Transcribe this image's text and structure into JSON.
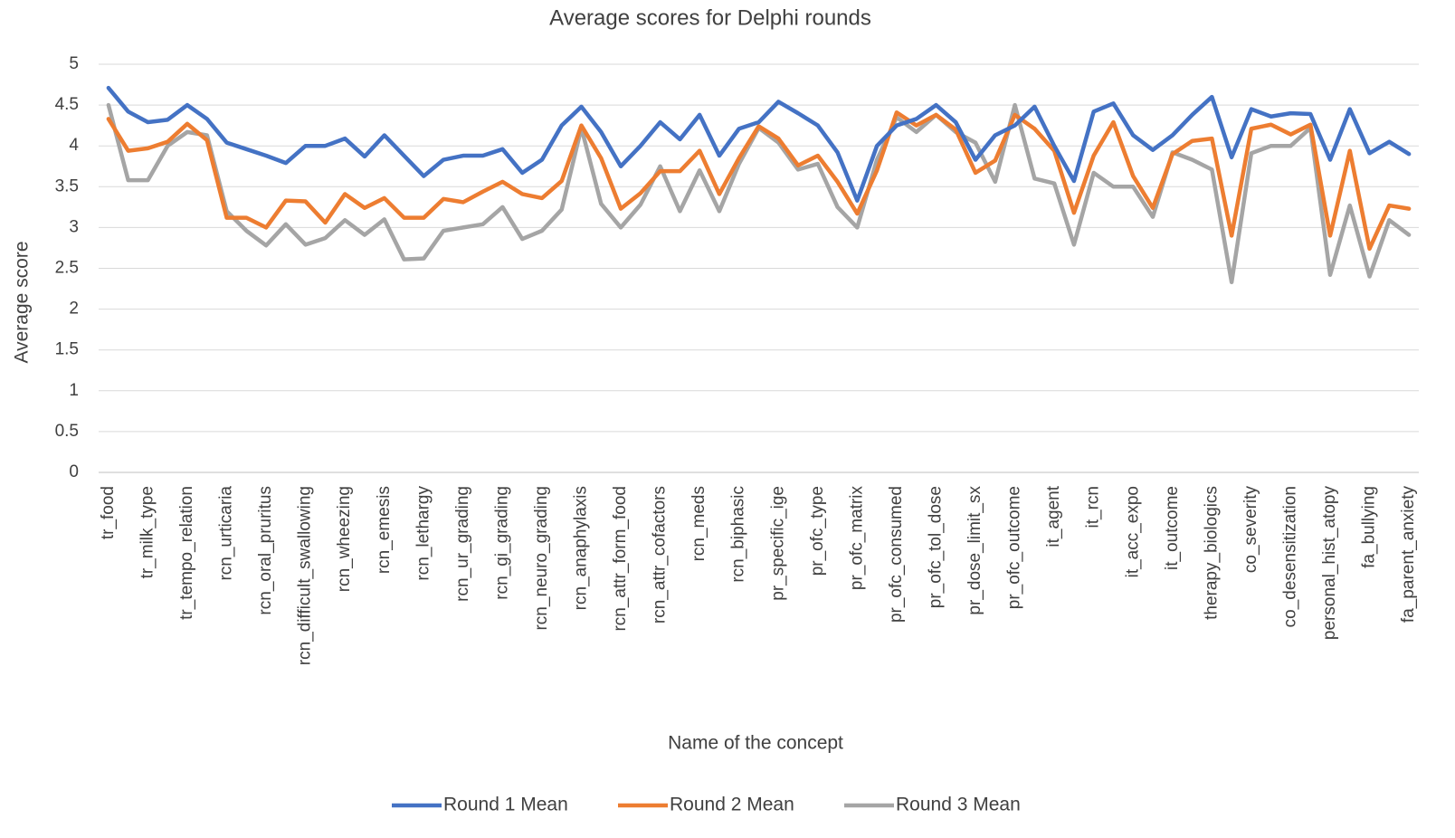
{
  "chart_data": {
    "type": "line",
    "title": "Average scores for Delphi rounds",
    "x_label": "Name of the concept",
    "y_label": "Average score",
    "categories": [
      "tr_food",
      null,
      "tr_milk_type",
      null,
      "tr_tempo_relation",
      null,
      "rcn_urticaria",
      null,
      "rcn_oral_pruritus",
      null,
      "rcn_difficult_swallowing",
      null,
      "rcn_wheezing",
      null,
      "rcn_emesis",
      null,
      "rcn_lethargy",
      null,
      "rcn_ur_grading",
      null,
      "rcn_gi_grading",
      null,
      "rcn_neuro_grading",
      null,
      "rcn_anaphylaxis",
      null,
      "rcn_attr_form_food",
      null,
      "rcn_attr_cofactors",
      null,
      "rcn_meds",
      null,
      "rcn_biphasic",
      null,
      "pr_specific_ige",
      null,
      "pr_ofc_type",
      null,
      "pr_ofc_matrix",
      null,
      "pr_ofc_consumed",
      null,
      "pr_ofc_tol_dose",
      null,
      "pr_dose_limit_sx",
      null,
      "pr_ofc_outcome",
      null,
      "it_agent",
      null,
      "it_rcn",
      null,
      "it_acc_expo",
      null,
      "it_outcome",
      null,
      "therapy_biologics",
      null,
      "co_severity",
      null,
      "co_desensitization",
      null,
      "personal_hist_atopy",
      null,
      "fa_bullying",
      null,
      "fa_parent_anxiety"
    ],
    "series": [
      {
        "name": "Round 1 Mean",
        "color": "#4472c4",
        "values": [
          4.71,
          4.42,
          4.29,
          4.32,
          4.5,
          4.33,
          4.04,
          3.96,
          3.88,
          3.79,
          4.0,
          4.0,
          4.09,
          3.87,
          4.13,
          3.88,
          3.63,
          3.83,
          3.88,
          3.88,
          3.96,
          3.67,
          3.83,
          4.25,
          4.48,
          4.17,
          3.75,
          4.0,
          4.29,
          4.08,
          4.38,
          3.88,
          4.21,
          4.29,
          4.54,
          4.4,
          4.25,
          3.92,
          3.33,
          4.0,
          4.25,
          4.33,
          4.5,
          4.29,
          3.83,
          4.13,
          4.25,
          4.48,
          4.0,
          3.57,
          4.42,
          4.52,
          4.13,
          3.95,
          4.13,
          4.38,
          4.6,
          3.86,
          4.45,
          4.36,
          4.4,
          4.39,
          3.83,
          4.45,
          3.91,
          4.05,
          3.9
        ]
      },
      {
        "name": "Round 2 Mean",
        "color": "#ed7d31",
        "values": [
          4.33,
          3.94,
          3.97,
          4.05,
          4.27,
          4.07,
          3.12,
          3.12,
          3.0,
          3.33,
          3.32,
          3.06,
          3.41,
          3.24,
          3.36,
          3.12,
          3.12,
          3.35,
          3.31,
          3.44,
          3.56,
          3.41,
          3.36,
          3.57,
          4.25,
          3.85,
          3.23,
          3.42,
          3.69,
          3.69,
          3.94,
          3.41,
          3.85,
          4.24,
          4.09,
          3.76,
          3.88,
          3.56,
          3.17,
          3.7,
          4.41,
          4.25,
          4.38,
          4.2,
          3.67,
          3.82,
          4.38,
          4.21,
          3.94,
          3.18,
          3.88,
          4.29,
          3.63,
          3.24,
          3.9,
          4.06,
          4.09,
          2.9,
          4.21,
          4.26,
          4.14,
          4.26,
          2.9,
          3.94,
          2.74,
          3.27,
          3.23
        ]
      },
      {
        "name": "Round 3 Mean",
        "color": "#a5a5a5",
        "values": [
          4.5,
          3.58,
          3.58,
          4.0,
          4.17,
          4.13,
          3.2,
          2.96,
          2.78,
          3.04,
          2.79,
          2.87,
          3.09,
          2.91,
          3.1,
          2.61,
          2.62,
          2.96,
          3.0,
          3.04,
          3.25,
          2.86,
          2.96,
          3.22,
          4.22,
          3.29,
          3.0,
          3.28,
          3.75,
          3.2,
          3.7,
          3.2,
          3.78,
          4.22,
          4.04,
          3.71,
          3.78,
          3.25,
          3.0,
          3.83,
          4.35,
          4.17,
          4.38,
          4.17,
          4.04,
          3.56,
          4.5,
          3.6,
          3.54,
          2.79,
          3.67,
          3.5,
          3.5,
          3.13,
          3.92,
          3.83,
          3.71,
          2.33,
          3.91,
          4.0,
          4.0,
          4.22,
          2.42,
          3.27,
          2.4,
          3.09,
          2.91
        ]
      }
    ],
    "ylim": [
      0,
      5
    ],
    "yticks": [
      0,
      0.5,
      1,
      1.5,
      2,
      2.5,
      3,
      3.5,
      4,
      4.5,
      5
    ],
    "grid": true,
    "legend": "bottom"
  }
}
